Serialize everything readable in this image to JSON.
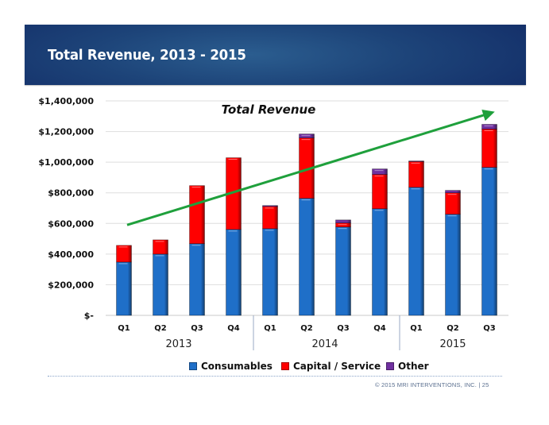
{
  "slide": {
    "banner_title": "Total Revenue, 2013 - 2015",
    "copyright": "© 2015 MRI INTERVENTIONS, INC.   |   25"
  },
  "colors": {
    "banner": "#1d4479",
    "consumables": "#1f6fc8",
    "capital_service": "#ff0000",
    "other": "#7030a0",
    "trend_arrow": "#1fa03c",
    "grid": "#dcdcdc"
  },
  "chart_data": {
    "type": "bar",
    "stacked": true,
    "title": "Total Revenue",
    "xlabel": "",
    "ylabel": "",
    "ylim": [
      0,
      1400000
    ],
    "yticks": [
      0,
      200000,
      400000,
      600000,
      800000,
      1000000,
      1200000,
      1400000
    ],
    "ytick_labels": [
      "$-",
      "$200,000",
      "$400,000",
      "$600,000",
      "$800,000",
      "$1,000,000",
      "$1,200,000",
      "$1,400,000"
    ],
    "grid": true,
    "legend_position": "bottom",
    "categories": [
      "Q1",
      "Q2",
      "Q3",
      "Q4",
      "Q1",
      "Q2",
      "Q3",
      "Q4",
      "Q1",
      "Q2",
      "Q3"
    ],
    "groups": [
      {
        "label": "2013",
        "count": 4
      },
      {
        "label": "2014",
        "count": 4
      },
      {
        "label": "2015",
        "count": 3
      }
    ],
    "series": [
      {
        "name": "Consumables",
        "color": "#1f6fc8",
        "values": [
          348000,
          400000,
          468000,
          561000,
          566000,
          764000,
          577000,
          696000,
          836000,
          660000,
          966000
        ]
      },
      {
        "name": "Capital / Service",
        "color": "#ff0000",
        "values": [
          109000,
          93000,
          379000,
          468000,
          145000,
          394000,
          26000,
          224000,
          168000,
          140000,
          250000
        ]
      },
      {
        "name": "Other",
        "color": "#7030a0",
        "values": [
          0,
          0,
          0,
          0,
          6000,
          26000,
          20000,
          36000,
          4000,
          16000,
          31000
        ]
      }
    ],
    "annotations": [
      {
        "type": "trend-arrow",
        "description": "upward green trend arrow",
        "from": {
          "category_index": 0,
          "value": 590000
        },
        "to": {
          "category_index": 10,
          "value": 1320000
        }
      }
    ]
  }
}
